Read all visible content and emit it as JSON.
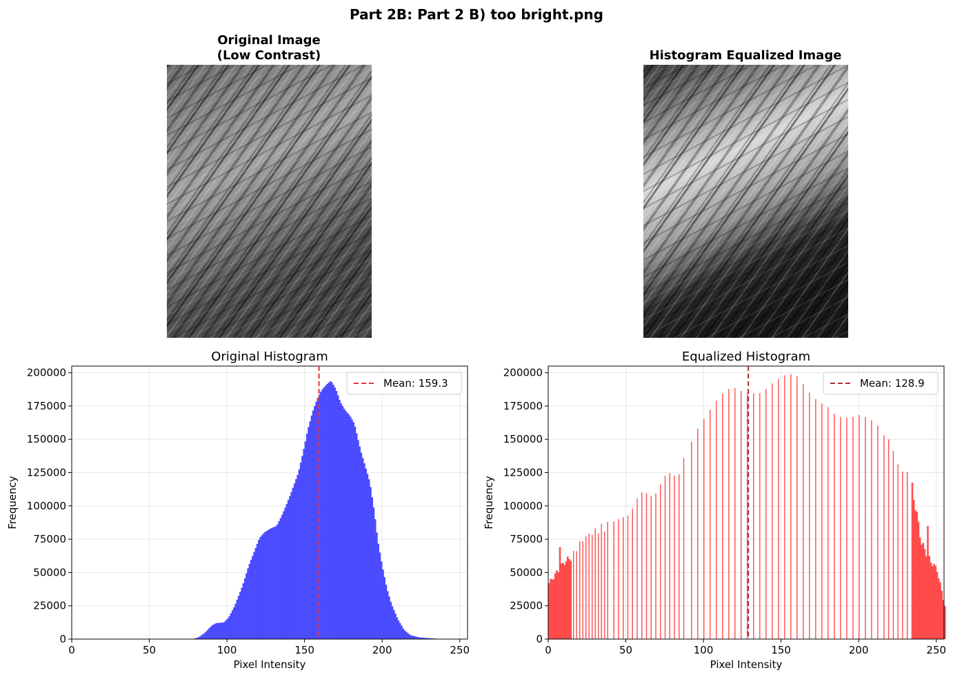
{
  "figure": {
    "suptitle": "Part 2B: Part 2 B) too bright.png"
  },
  "panels": {
    "original_image": {
      "title_line1": "Original Image",
      "title_line2": "(Low Contrast)"
    },
    "equalized_image": {
      "title": "Histogram Equalized Image"
    }
  },
  "colors": {
    "original_bars": "#4b4bff",
    "equalized_bars": "#ff4b4b",
    "mean_line_original": "#e8323c",
    "mean_line_equalized": "#b0272f",
    "grid": "#e6e6e6"
  },
  "chart_data": [
    {
      "type": "bar",
      "title": "Original Histogram",
      "xlabel": "Pixel Intensity",
      "ylabel": "Frequency",
      "xlim": [
        0,
        255
      ],
      "ylim": [
        0,
        205000
      ],
      "xticks": [
        0,
        50,
        100,
        150,
        200,
        250
      ],
      "yticks": [
        0,
        25000,
        50000,
        75000,
        100000,
        125000,
        150000,
        175000,
        200000
      ],
      "grid": true,
      "legend": {
        "placement": "top-right",
        "label": "Mean: 159.3"
      },
      "mean": 159.3,
      "keypoints": [
        [
          0,
          0
        ],
        [
          78,
          0
        ],
        [
          82,
          1500
        ],
        [
          86,
          5000
        ],
        [
          90,
          10000
        ],
        [
          93,
          12000
        ],
        [
          98,
          12500
        ],
        [
          101,
          16000
        ],
        [
          105,
          25000
        ],
        [
          110,
          40000
        ],
        [
          114,
          55000
        ],
        [
          118,
          67000
        ],
        [
          121,
          76000
        ],
        [
          124,
          80000
        ],
        [
          128,
          83000
        ],
        [
          132,
          85000
        ],
        [
          135,
          92000
        ],
        [
          138,
          100000
        ],
        [
          142,
          112000
        ],
        [
          146,
          125000
        ],
        [
          149,
          140000
        ],
        [
          152,
          157000
        ],
        [
          155,
          170000
        ],
        [
          158,
          180000
        ],
        [
          161,
          187000
        ],
        [
          164,
          191000
        ],
        [
          167,
          194000
        ],
        [
          170,
          188000
        ],
        [
          173,
          178000
        ],
        [
          176,
          172000
        ],
        [
          179,
          168000
        ],
        [
          182,
          162000
        ],
        [
          184,
          152000
        ],
        [
          186,
          142000
        ],
        [
          189,
          130000
        ],
        [
          192,
          118000
        ],
        [
          195,
          95000
        ],
        [
          197,
          75000
        ],
        [
          200,
          55000
        ],
        [
          203,
          38000
        ],
        [
          206,
          26000
        ],
        [
          210,
          15000
        ],
        [
          214,
          7000
        ],
        [
          218,
          3000
        ],
        [
          224,
          1200
        ],
        [
          235,
          300
        ],
        [
          240,
          0
        ],
        [
          255,
          0
        ]
      ]
    },
    {
      "type": "bar",
      "title": "Equalized Histogram",
      "xlabel": "Pixel Intensity",
      "ylabel": "Frequency",
      "xlim": [
        0,
        255
      ],
      "ylim": [
        0,
        205000
      ],
      "xticks": [
        0,
        50,
        100,
        150,
        200,
        250
      ],
      "yticks": [
        0,
        25000,
        50000,
        75000,
        100000,
        125000,
        150000,
        175000,
        200000
      ],
      "grid": true,
      "legend": {
        "placement": "top-right",
        "label": "Mean: 128.9"
      },
      "mean": 128.9,
      "keypoints": [
        [
          0,
          42000
        ],
        [
          5,
          50000
        ],
        [
          10,
          58000
        ],
        [
          15,
          62000
        ],
        [
          20,
          72000
        ],
        [
          25,
          78000
        ],
        [
          30,
          81000
        ],
        [
          35,
          84000
        ],
        [
          40,
          85000
        ],
        [
          45,
          87000
        ],
        [
          50,
          95000
        ],
        [
          55,
          102000
        ],
        [
          60,
          106000
        ],
        [
          65,
          110000
        ],
        [
          70,
          114000
        ],
        [
          75,
          118000
        ],
        [
          80,
          124000
        ],
        [
          85,
          130000
        ],
        [
          90,
          148000
        ],
        [
          95,
          158000
        ],
        [
          100,
          163000
        ],
        [
          105,
          168000
        ],
        [
          110,
          175000
        ],
        [
          115,
          182000
        ],
        [
          120,
          187000
        ],
        [
          125,
          189000
        ],
        [
          130,
          192000
        ],
        [
          135,
          192000
        ],
        [
          140,
          193000
        ],
        [
          145,
          194000
        ],
        [
          150,
          193000
        ],
        [
          155,
          192000
        ],
        [
          160,
          190000
        ],
        [
          165,
          185000
        ],
        [
          170,
          182000
        ],
        [
          175,
          182000
        ],
        [
          180,
          181000
        ],
        [
          185,
          175000
        ],
        [
          190,
          170000
        ],
        [
          195,
          166000
        ],
        [
          200,
          164000
        ],
        [
          205,
          160000
        ],
        [
          210,
          157000
        ],
        [
          215,
          153000
        ],
        [
          220,
          142000
        ],
        [
          225,
          135000
        ],
        [
          230,
          128000
        ],
        [
          233,
          120000
        ],
        [
          236,
          100000
        ],
        [
          240,
          72000
        ],
        [
          245,
          60000
        ],
        [
          250,
          52000
        ],
        [
          255,
          25000
        ]
      ]
    }
  ]
}
